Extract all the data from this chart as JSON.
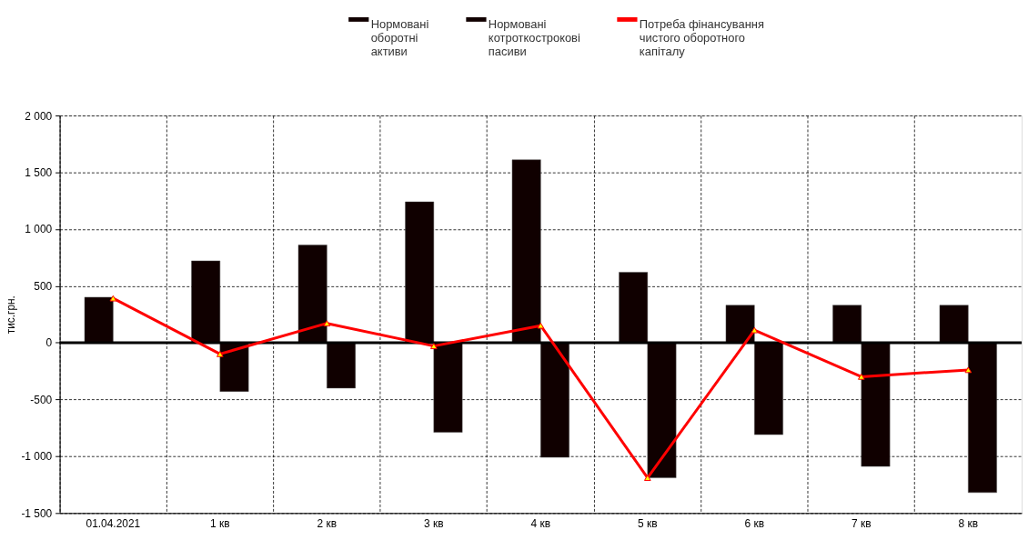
{
  "chart_data": {
    "type": "bar",
    "ylabel": "тис.грн.",
    "categories": [
      "01.04.2021",
      "1 кв",
      "2 кв",
      "3 кв",
      "4 кв",
      "5 кв",
      "6 кв",
      "7 кв",
      "8 кв"
    ],
    "series": [
      {
        "name": "Нормовані оборотні активи",
        "color": "#100000",
        "values": [
          400,
          720,
          860,
          1240,
          1610,
          620,
          330,
          330,
          330
        ]
      },
      {
        "name": "Нормовані котроткострокові пасиви",
        "color": "#100000",
        "values": [
          null,
          -430,
          -400,
          -790,
          -1010,
          -1190,
          -810,
          -1090,
          -1320
        ]
      },
      {
        "name": "Потреба фінансування чистого оборотного капіталу",
        "type": "line",
        "color": "#ff0000",
        "values": [
          390,
          -100,
          170,
          -30,
          150,
          -1190,
          110,
          -300,
          -240
        ]
      }
    ],
    "ylim": [
      -1500,
      2000
    ],
    "yticks": [
      {
        "value": -1500,
        "label": "-1 500"
      },
      {
        "value": -1000,
        "label": "-1 000"
      },
      -500,
      0,
      500,
      {
        "value": 1000,
        "label": "1 000"
      },
      {
        "value": 1500,
        "label": "1 500"
      },
      {
        "value": 2000,
        "label": "2 000"
      }
    ],
    "ref_lines": [
      {
        "axis": "y",
        "value": 0,
        "color": "#000000"
      }
    ],
    "grid": true,
    "legend": "top",
    "marker": "triangle",
    "line_style": "solid"
  }
}
